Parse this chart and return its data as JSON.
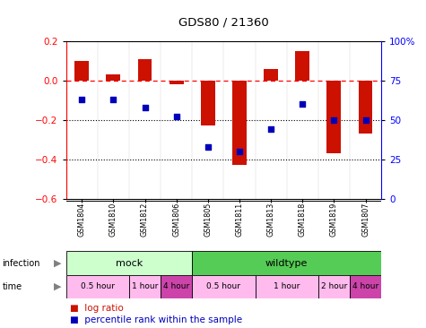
{
  "title": "GDS80 / 21360",
  "samples": [
    "GSM1804",
    "GSM1810",
    "GSM1812",
    "GSM1806",
    "GSM1805",
    "GSM1811",
    "GSM1813",
    "GSM1818",
    "GSM1819",
    "GSM1807"
  ],
  "log_ratio": [
    0.1,
    0.03,
    0.11,
    -0.02,
    -0.23,
    -0.43,
    0.06,
    0.15,
    -0.37,
    -0.27
  ],
  "percentile_mapped": [
    63,
    63,
    58,
    52,
    33,
    30,
    44,
    60,
    50,
    50
  ],
  "bar_color": "#cc1100",
  "dot_color": "#0000bb",
  "ylim_left": [
    -0.6,
    0.2
  ],
  "ylim_right": [
    0,
    100
  ],
  "dotted_lines": [
    -0.2,
    -0.4
  ],
  "infection_groups": [
    {
      "label": "mock",
      "start": 0,
      "end": 4,
      "color": "#ccffcc"
    },
    {
      "label": "wildtype",
      "start": 4,
      "end": 10,
      "color": "#55cc55"
    }
  ],
  "time_groups": [
    {
      "label": "0.5 hour",
      "start": 0,
      "end": 2,
      "color": "#ffbbee"
    },
    {
      "label": "1 hour",
      "start": 2,
      "end": 3,
      "color": "#ffbbee"
    },
    {
      "label": "4 hour",
      "start": 3,
      "end": 4,
      "color": "#cc44aa"
    },
    {
      "label": "0.5 hour",
      "start": 4,
      "end": 6,
      "color": "#ffbbee"
    },
    {
      "label": "1 hour",
      "start": 6,
      "end": 8,
      "color": "#ffbbee"
    },
    {
      "label": "2 hour",
      "start": 8,
      "end": 9,
      "color": "#ffbbee"
    },
    {
      "label": "4 hour",
      "start": 9,
      "end": 10,
      "color": "#cc44aa"
    }
  ],
  "sample_bg_color": "#cccccc",
  "legend_log_ratio_color": "#cc1100",
  "legend_pct_color": "#0000bb"
}
